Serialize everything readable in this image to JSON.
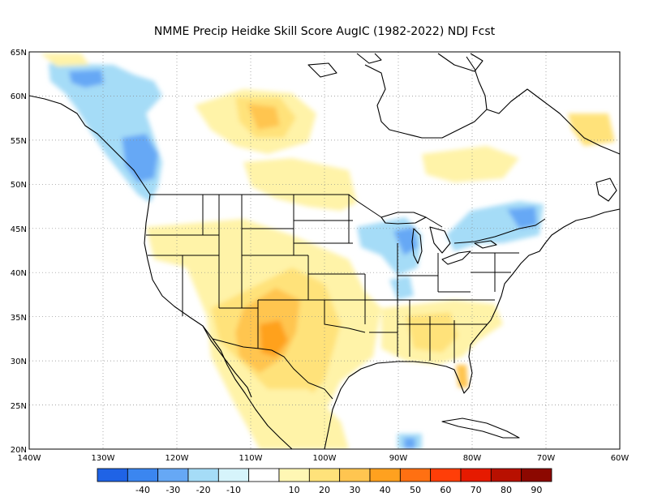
{
  "title": "NMME Precip Heidke Skill Score AugIC (1982-2022) NDJ Fcst",
  "lat_ticks": [
    "65N",
    "60N",
    "55N",
    "50N",
    "45N",
    "40N",
    "35N",
    "30N",
    "25N",
    "20N"
  ],
  "lon_ticks": [
    "140W",
    "130W",
    "120W",
    "110W",
    "100W",
    "90W",
    "80W",
    "70W",
    "60W"
  ],
  "colorbar": {
    "labels": [
      "-40",
      "-30",
      "-20",
      "-10",
      "10",
      "20",
      "30",
      "40",
      "50",
      "60",
      "70",
      "80",
      "90"
    ],
    "colors": [
      "#1f63e6",
      "#3b86f0",
      "#66a8f5",
      "#a5dcf7",
      "#d6f4fb",
      "#ffffff",
      "#fff7b4",
      "#ffe27a",
      "#ffc550",
      "#ffa11f",
      "#ff7012",
      "#ff3e08",
      "#e61a00",
      "#b81000",
      "#8c0800"
    ]
  },
  "map": {
    "lon_range": [
      -140,
      -60
    ],
    "lat_range": [
      20,
      65
    ],
    "gridlines": "dotted",
    "color_scheme": {
      "blue_light": "#a5dcf7",
      "blue_mid": "#66a8f5",
      "yellow_light": "#fff3a8",
      "yellow": "#ffe27a",
      "orange": "#ffc550",
      "orange_dark": "#ffa11f"
    }
  }
}
